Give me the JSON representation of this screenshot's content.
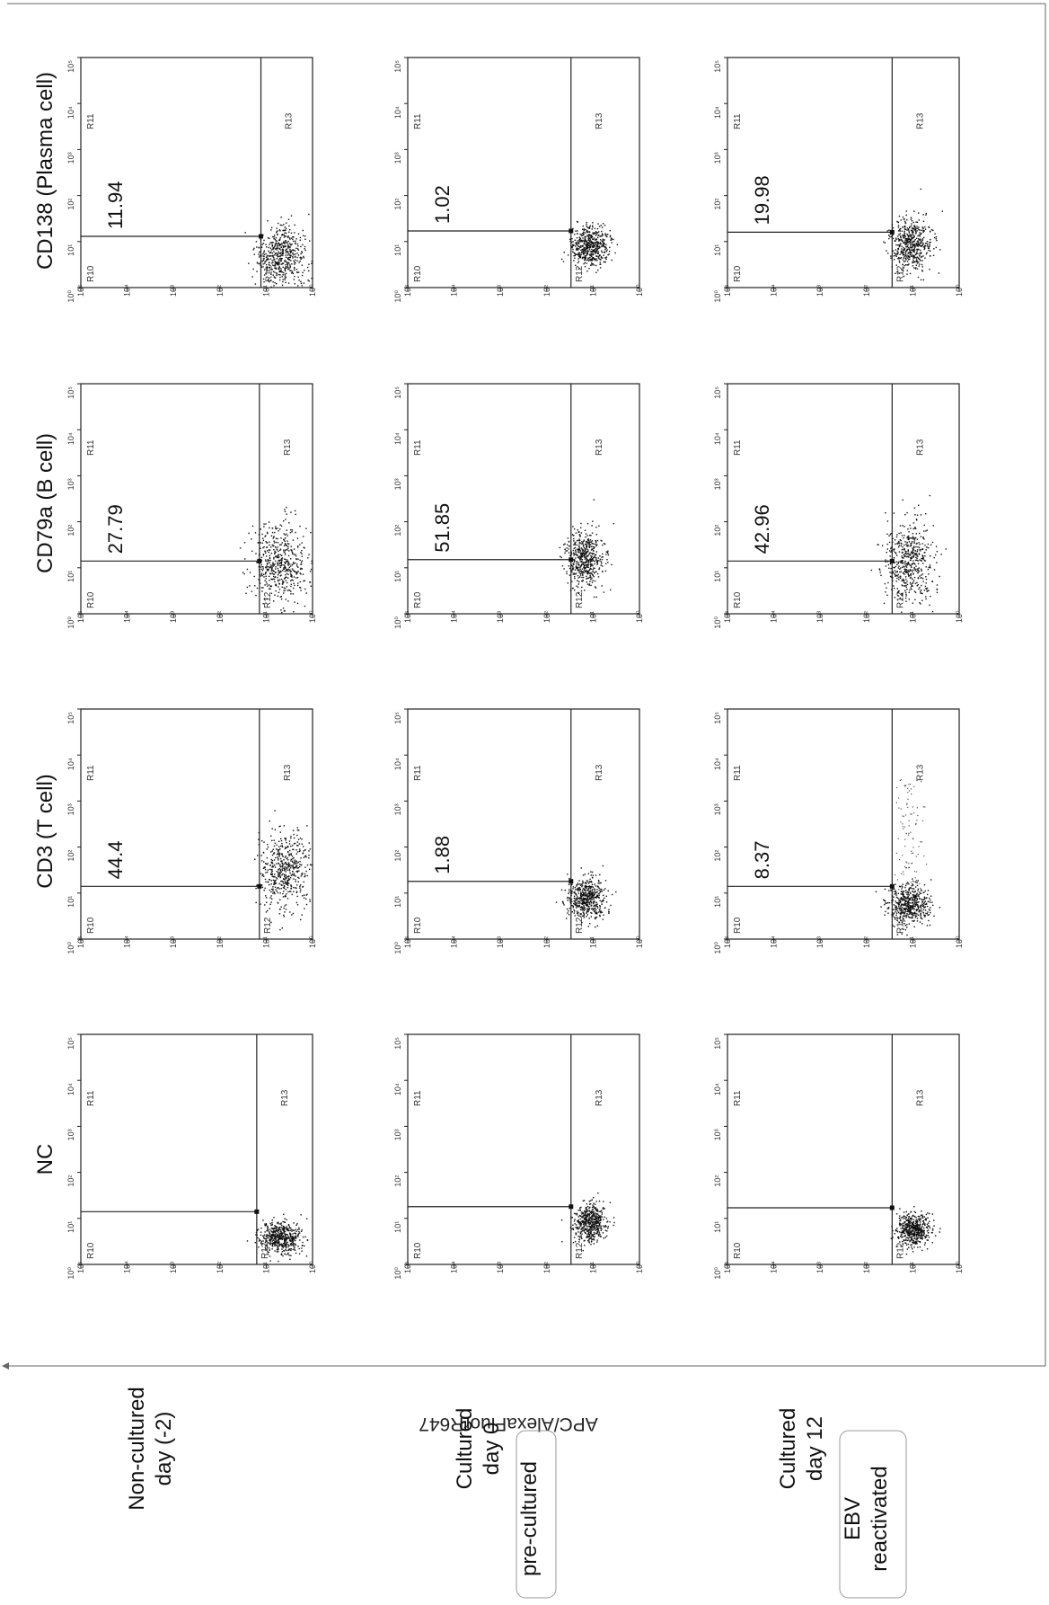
{
  "figure": {
    "axis_label": "APC/AlexaFluorR647",
    "column_titles": [
      "NC",
      "CD3 (T cell)",
      "CD79a (B cell)",
      "CD138 (Plasma cell)"
    ],
    "row_labels": [
      {
        "lines": [
          "Non-cultured",
          "day (-2)"
        ],
        "bracket": null
      },
      {
        "lines": [
          "Cultured",
          "day 0"
        ],
        "bracket": "pre-cultured"
      },
      {
        "lines": [
          "Cultured",
          "day 12"
        ],
        "bracket": [
          "EBV",
          "reactivated"
        ]
      }
    ]
  },
  "chart_data": {
    "type": "scatter",
    "plot_kind": "flow cytometry dot plots (log-log quadrant gates)",
    "grid": false,
    "axis_ticks": [
      "10⁰",
      "10¹",
      "10²",
      "10³",
      "10⁴",
      "10⁵"
    ],
    "axis_range": [
      1,
      100000
    ],
    "scale": "log",
    "region_labels": [
      "R10",
      "R11",
      "R12",
      "R13"
    ],
    "panels": [
      {
        "row": "Non-cultured day (-2)",
        "column": "NC",
        "percent": null,
        "gate_x": 14,
        "gate_y": 16,
        "cloud": {
          "x": 4,
          "y": 5,
          "spread_x": 0.18,
          "spread_y": 0.22
        },
        "tail": 0
      },
      {
        "row": "Non-cultured day (-2)",
        "column": "CD3 (T cell)",
        "percent": "44.4",
        "gate_x": 14,
        "gate_y": 14,
        "cloud": {
          "x": 30,
          "y": 4,
          "spread_x": 0.42,
          "spread_y": 0.28
        },
        "tail": 0
      },
      {
        "row": "Non-cultured day (-2)",
        "column": "CD79a (B cell)",
        "percent": "27.79",
        "gate_x": 14,
        "gate_y": 14,
        "cloud": {
          "x": 12,
          "y": 5,
          "spread_x": 0.42,
          "spread_y": 0.3
        },
        "tail": 0
      },
      {
        "row": "Non-cultured day (-2)",
        "column": "CD138 (Plasma cell)",
        "percent": "11.94",
        "gate_x": 13,
        "gate_y": 13,
        "cloud": {
          "x": 5,
          "y": 5,
          "spread_x": 0.32,
          "spread_y": 0.28
        },
        "tail": 0
      },
      {
        "row": "Cultured day 0",
        "column": "NC",
        "percent": null,
        "gate_x": 18,
        "gate_y": 30,
        "cloud": {
          "x": 8,
          "y": 12,
          "spread_x": 0.2,
          "spread_y": 0.17
        },
        "tail": 0
      },
      {
        "row": "Cultured day 0",
        "column": "CD3 (T cell)",
        "percent": "1.88",
        "gate_x": 18,
        "gate_y": 30,
        "cloud": {
          "x": 8,
          "y": 14,
          "spread_x": 0.22,
          "spread_y": 0.2
        },
        "tail": 0
      },
      {
        "row": "Cultured day 0",
        "column": "CD79a (B cell)",
        "percent": "51.85",
        "gate_x": 15,
        "gate_y": 30,
        "cloud": {
          "x": 16,
          "y": 15,
          "spread_x": 0.3,
          "spread_y": 0.2
        },
        "tail": 0
      },
      {
        "row": "Cultured day 0",
        "column": "CD138 (Plasma cell)",
        "percent": "1.02",
        "gate_x": 17,
        "gate_y": 30,
        "cloud": {
          "x": 8,
          "y": 12,
          "spread_x": 0.22,
          "spread_y": 0.2
        },
        "tail": 0
      },
      {
        "row": "Cultured day 12",
        "column": "NC",
        "percent": null,
        "gate_x": 17,
        "gate_y": 28,
        "cloud": {
          "x": 6,
          "y": 10,
          "spread_x": 0.18,
          "spread_y": 0.17
        },
        "tail": 0
      },
      {
        "row": "Cultured day 12",
        "column": "CD3 (T cell)",
        "percent": "8.37",
        "gate_x": 14,
        "gate_y": 28,
        "cloud": {
          "x": 6,
          "y": 12,
          "spread_x": 0.22,
          "spread_y": 0.22
        },
        "tail": 0.16
      },
      {
        "row": "Cultured day 12",
        "column": "CD79a (B cell)",
        "percent": "42.96",
        "gate_x": 14,
        "gate_y": 28,
        "cloud": {
          "x": 14,
          "y": 12,
          "spread_x": 0.45,
          "spread_y": 0.25
        },
        "tail": 0
      },
      {
        "row": "Cultured day 12",
        "column": "CD138 (Plasma cell)",
        "percent": "19.98",
        "gate_x": 16,
        "gate_y": 28,
        "cloud": {
          "x": 9,
          "y": 11,
          "spread_x": 0.28,
          "spread_y": 0.22
        },
        "tail": 0
      }
    ]
  }
}
